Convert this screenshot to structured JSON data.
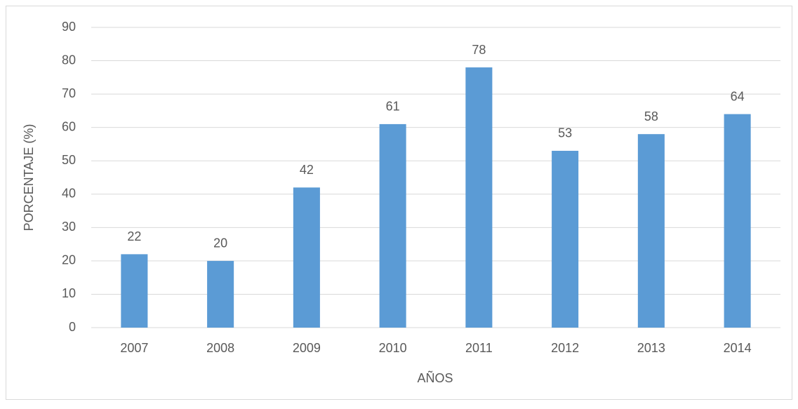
{
  "chart_data": {
    "type": "bar",
    "categories": [
      "2007",
      "2008",
      "2009",
      "2010",
      "2011",
      "2012",
      "2013",
      "2014"
    ],
    "values": [
      22,
      20,
      42,
      61,
      78,
      53,
      58,
      64
    ],
    "color": "#5b9bd5",
    "xlabel": "AÑOS",
    "ylabel": "PORCENTAJE (%)",
    "ylim": [
      0,
      90
    ],
    "yticks": [
      0,
      10,
      20,
      30,
      40,
      50,
      60,
      70,
      80,
      90
    ],
    "grid": true,
    "data_labels": true
  }
}
